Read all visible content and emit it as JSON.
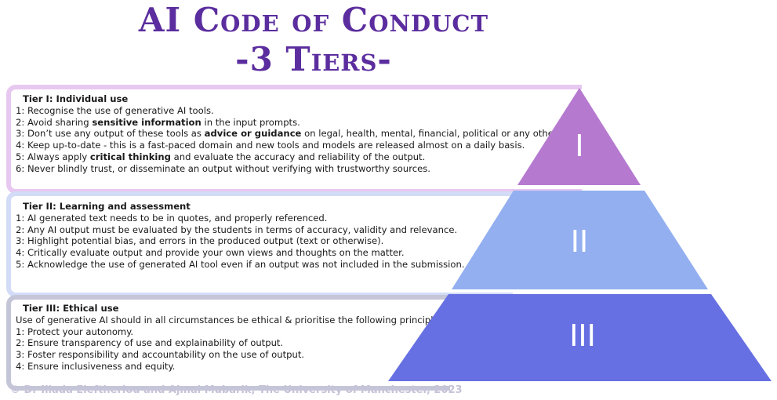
{
  "title": {
    "line1": "AI Code of Conduct",
    "line2": "-3 Tiers-"
  },
  "tiers": [
    {
      "numeral": "I",
      "heading": "Tier I: Individual use",
      "fill": "#b57ad0",
      "border": "#e7c8f0",
      "lines": [
        [
          {
            "t": "1: Recognise the use of generative AI tools."
          }
        ],
        [
          {
            "t": "2: Avoid sharing "
          },
          {
            "t": "sensitive information",
            "b": true
          },
          {
            "t": " in the input prompts."
          }
        ],
        [
          {
            "t": "3: Don’t use any output of these tools as "
          },
          {
            "t": "advice or guidance",
            "b": true
          },
          {
            "t": " on legal, health, mental, financial, political or any other issues."
          }
        ],
        [
          {
            "t": "4: Keep up-to-date - this is a fast-paced domain and new tools and models are released almost on a daily basis."
          }
        ],
        [
          {
            "t": "5: Always apply "
          },
          {
            "t": "critical thinking",
            "b": true
          },
          {
            "t": " and evaluate the accuracy and reliability of the output."
          }
        ],
        [
          {
            "t": "6: Never blindly trust, or disseminate an output without verifying with trustworthy sources."
          }
        ]
      ]
    },
    {
      "numeral": "II",
      "heading": "Tier II: Learning and assessment",
      "fill": "#93aff0",
      "border": "#d3dcf7",
      "lines": [
        [
          {
            "t": "1: AI generated text needs to be in quotes, and properly referenced."
          }
        ],
        [
          {
            "t": "2: Any AI output must be evaluated by the students in terms of accuracy, validity and relevance."
          }
        ],
        [
          {
            "t": "3: Highlight potential bias, and errors in the produced output (text or otherwise)."
          }
        ],
        [
          {
            "t": "4: Critically evaluate output and provide your own views and thoughts on the matter."
          }
        ],
        [
          {
            "t": "5: Acknowledge the use of generated AI tool even if an output was not included in the submission."
          }
        ]
      ]
    },
    {
      "numeral": "III",
      "heading": "Tier III: Ethical use",
      "fill": "#6670e3",
      "border": "#c4c6d8",
      "lines": [
        [
          {
            "t": "Use of generative AI should in all circumstances be ethical & prioritise the following principles:"
          }
        ],
        [
          {
            "t": "1: Protect your autonomy."
          }
        ],
        [
          {
            "t": "2: Ensure transparency of use and explainability of output."
          }
        ],
        [
          {
            "t": "3: Foster responsibility and accountability on the use of output."
          }
        ],
        [
          {
            "t": "4: Ensure inclusiveness and equity."
          }
        ]
      ]
    }
  ],
  "copyright": "© Dr Iliada Eleftheriou and Ajmal Mubarik, The University of Manchester, 2023"
}
